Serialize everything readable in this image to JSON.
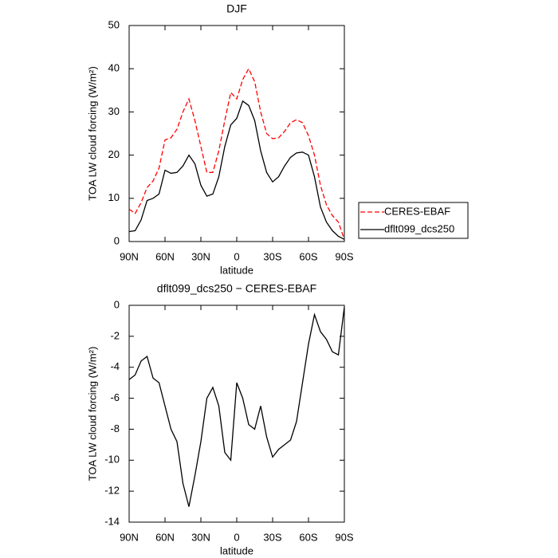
{
  "chart_data": [
    {
      "type": "line",
      "title": "DJF",
      "x_label": "latitude",
      "y_label": "TOA LW cloud forcing (W/m²)",
      "x": [
        90,
        85,
        80,
        75,
        70,
        65,
        60,
        55,
        50,
        45,
        40,
        35,
        30,
        25,
        20,
        15,
        10,
        5,
        0,
        -5,
        -10,
        -15,
        -20,
        -25,
        -30,
        -35,
        -40,
        -45,
        -50,
        -55,
        -60,
        -65,
        -70,
        -75,
        -80,
        -85,
        -90
      ],
      "xlim": [
        90,
        -90
      ],
      "xticks": [
        {
          "value": 90,
          "label": "90N"
        },
        {
          "value": 60,
          "label": "60N"
        },
        {
          "value": 30,
          "label": "30N"
        },
        0,
        {
          "value": -30,
          "label": "30S"
        },
        {
          "value": -60,
          "label": "60S"
        },
        {
          "value": -90,
          "label": "90S"
        }
      ],
      "ylim": [
        0,
        50
      ],
      "yticks": [
        0,
        10,
        20,
        30,
        40,
        50
      ],
      "legend": "outside-right",
      "series": [
        {
          "name": "CERES-EBAF",
          "color": "#ff0000",
          "linestyle": "dashed",
          "values": [
            7.5,
            6.5,
            9,
            12.5,
            14,
            17,
            23.5,
            24,
            26,
            30,
            33,
            28,
            22,
            16,
            16,
            21,
            28,
            34.5,
            33,
            37.5,
            40,
            37,
            30,
            25,
            23.8,
            24,
            25.5,
            27.5,
            28.2,
            27.5,
            24.5,
            20,
            13,
            8.5,
            6,
            4.5,
            0.5
          ]
        },
        {
          "name": "dflt099_dcs250",
          "color": "#000000",
          "linestyle": "solid",
          "values": [
            2.3,
            2.5,
            5,
            9.5,
            10,
            11,
            16.5,
            15.8,
            16,
            17.5,
            20,
            18,
            13,
            10.5,
            11,
            15,
            22,
            27,
            28.5,
            32.5,
            31.5,
            28,
            21,
            16,
            13.8,
            15,
            17.5,
            19.5,
            20.5,
            20.7,
            20,
            15,
            8,
            4.5,
            2.5,
            1.2,
            0.5
          ]
        }
      ]
    },
    {
      "type": "line",
      "title": "dflt099_dcs250 − CERES-EBAF",
      "x_label": "latitude",
      "y_label": "TOA LW cloud forcing (W/m²)",
      "x": [
        90,
        85,
        80,
        75,
        70,
        65,
        60,
        55,
        50,
        45,
        40,
        35,
        30,
        25,
        20,
        15,
        10,
        5,
        0,
        -5,
        -10,
        -15,
        -20,
        -25,
        -30,
        -35,
        -40,
        -45,
        -50,
        -55,
        -60,
        -65,
        -70,
        -75,
        -80,
        -85,
        -90
      ],
      "xlim": [
        90,
        -90
      ],
      "xticks": [
        {
          "value": 90,
          "label": "90N"
        },
        {
          "value": 60,
          "label": "60N"
        },
        {
          "value": 30,
          "label": "30N"
        },
        0,
        {
          "value": -30,
          "label": "30S"
        },
        {
          "value": -60,
          "label": "60S"
        },
        {
          "value": -90,
          "label": "90S"
        }
      ],
      "ylim": [
        -14,
        0
      ],
      "yticks": [
        -14,
        -12,
        -10,
        -8,
        -6,
        -4,
        -2,
        0
      ],
      "series": [
        {
          "color": "#000000",
          "linestyle": "solid",
          "values": [
            -4.8,
            -4.5,
            -3.6,
            -3.3,
            -4.7,
            -5,
            -6.5,
            -8,
            -8.8,
            -11.5,
            -13,
            -11,
            -8.8,
            -6,
            -5.3,
            -6.5,
            -9.5,
            -10,
            -5,
            -6,
            -7.7,
            -8,
            -6.5,
            -8.5,
            -9.8,
            -9.3,
            -9,
            -8.7,
            -7.5,
            -5,
            -2.5,
            -0.6,
            -1.7,
            -2.2,
            -3,
            -3.2,
            -0.1
          ]
        }
      ]
    }
  ]
}
